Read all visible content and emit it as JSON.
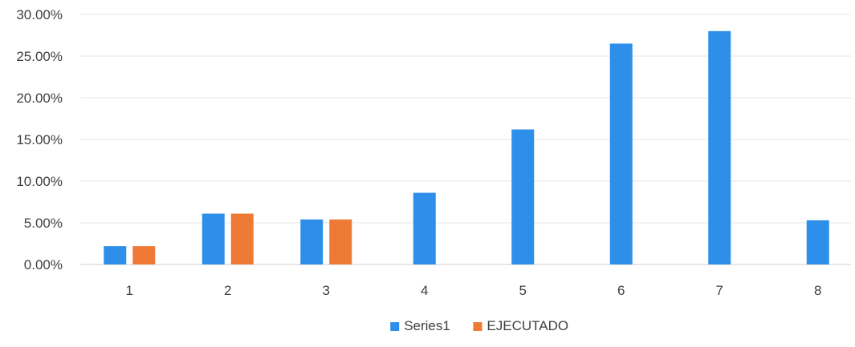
{
  "chart_data": {
    "type": "bar",
    "categories": [
      "1",
      "2",
      "3",
      "4",
      "5",
      "6",
      "7",
      "8"
    ],
    "series": [
      {
        "name": "Series1",
        "color": "#2E8FEA",
        "values": [
          0.022,
          0.061,
          0.054,
          0.086,
          0.162,
          0.265,
          0.28,
          0.053
        ]
      },
      {
        "name": "EJECUTADO",
        "color": "#EE7A35",
        "values": [
          0.022,
          0.061,
          0.054,
          null,
          null,
          null,
          null,
          null
        ]
      }
    ],
    "y_ticks": [
      "0.00%",
      "5.00%",
      "10.00%",
      "15.00%",
      "20.00%",
      "25.00%",
      "30.00%"
    ],
    "ylim": [
      0,
      0.3
    ],
    "grid": true,
    "legend_position": "bottom"
  }
}
